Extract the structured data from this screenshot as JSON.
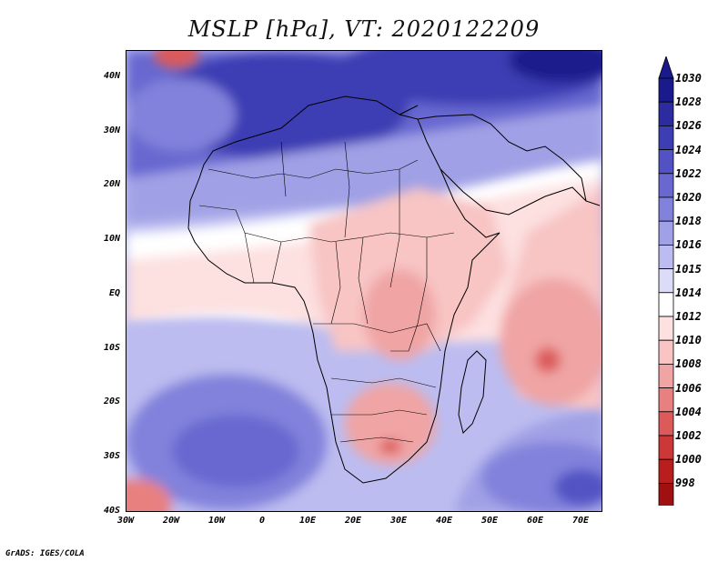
{
  "title": "MSLP [hPa], VT: 2020122209",
  "y_labels": [
    "40N",
    "30N",
    "20N",
    "10N",
    "EQ",
    "10S",
    "20S",
    "30S",
    "40S"
  ],
  "x_labels": [
    "30W",
    "20W",
    "10W",
    "0",
    "10E",
    "20E",
    "30E",
    "40E",
    "50E",
    "60E",
    "70E"
  ],
  "colorbar": {
    "labels": [
      "1030",
      "1028",
      "1026",
      "1024",
      "1022",
      "1020",
      "1018",
      "1016",
      "1015",
      "1014",
      "1012",
      "1010",
      "1008",
      "1006",
      "1004",
      "1002",
      "1000",
      "998"
    ],
    "colors": [
      "#1a1a8c",
      "#2c2ca0",
      "#3d3db4",
      "#5252c4",
      "#6868d0",
      "#8282dc",
      "#a0a0e6",
      "#bcbcf0",
      "#dcdcf8",
      "#ffffff",
      "#fde0e0",
      "#f8c4c4",
      "#f0a4a4",
      "#e88080",
      "#dc5a5a",
      "#cc3838",
      "#b81e1e",
      "#a01010"
    ]
  },
  "footer": "GrADS: IGES/COLA"
}
